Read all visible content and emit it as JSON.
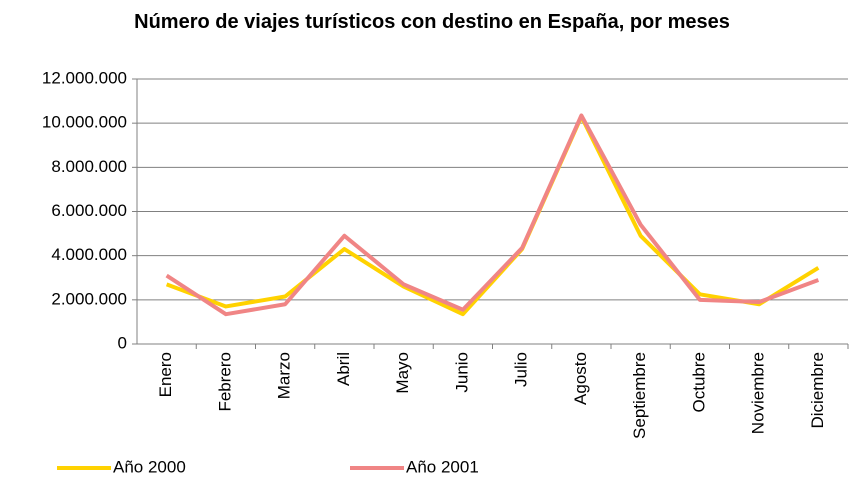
{
  "chart_data": {
    "type": "line",
    "title": "Número de viajes turísticos con destino en España, por meses",
    "categories": [
      "Enero",
      "Febrero",
      "Marzo",
      "Abril",
      "Mayo",
      "Junio",
      "Julio",
      "Agosto",
      "Septiembre",
      "Octubre",
      "Noviembre",
      "Diciembre"
    ],
    "series": [
      {
        "name": "Año 2000",
        "color": "#ffd200",
        "values": [
          2700000,
          1700000,
          2150000,
          4300000,
          2600000,
          1350000,
          4300000,
          10300000,
          4900000,
          2250000,
          1800000,
          3450000
        ]
      },
      {
        "name": "Año 2001",
        "color": "#f08585",
        "values": [
          3100000,
          1350000,
          1800000,
          4900000,
          2700000,
          1550000,
          4350000,
          10350000,
          5400000,
          2000000,
          1900000,
          2900000
        ]
      }
    ],
    "ylim": [
      0,
      12000000
    ],
    "yticks": [
      0,
      {
        "value": 2000000,
        "label": "2.000.000"
      },
      {
        "value": 4000000,
        "label": "4.000.000"
      },
      {
        "value": 6000000,
        "label": "6.000.000"
      },
      {
        "value": 8000000,
        "label": "8.000.000"
      },
      {
        "value": 10000000,
        "label": "10.000.000"
      },
      {
        "value": 12000000,
        "label": "12.000.000"
      }
    ],
    "grid": true
  }
}
